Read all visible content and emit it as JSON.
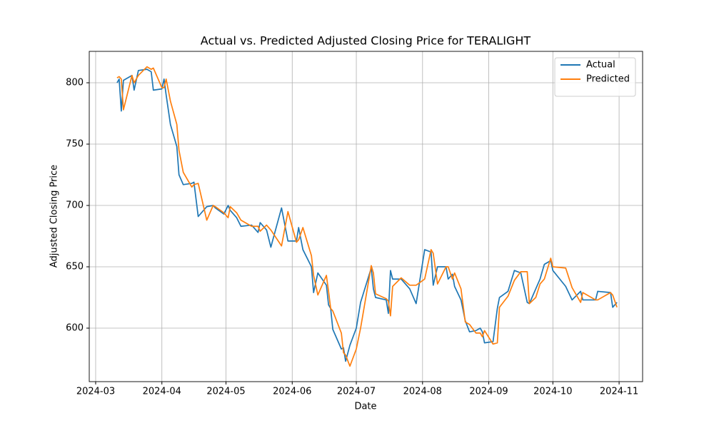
{
  "chart_data": {
    "type": "line",
    "title": "Actual vs. Predicted Adjusted Closing Price for TERALIGHT",
    "x_label": "Date",
    "y_label": "Adjusted Closing Price",
    "x": [
      "2024-03-11",
      "2024-03-12",
      "2024-03-13",
      "2024-03-14",
      "2024-03-18",
      "2024-03-19",
      "2024-03-21",
      "2024-03-25",
      "2024-03-27",
      "2024-03-28",
      "2024-04-01",
      "2024-04-02",
      "2024-04-03",
      "2024-04-05",
      "2024-04-08",
      "2024-04-09",
      "2024-04-11",
      "2024-04-15",
      "2024-04-16",
      "2024-04-18",
      "2024-04-22",
      "2024-04-25",
      "2024-04-26",
      "2024-04-30",
      "2024-05-02",
      "2024-05-03",
      "2024-05-06",
      "2024-05-08",
      "2024-05-13",
      "2024-05-16",
      "2024-05-17",
      "2024-05-20",
      "2024-05-22",
      "2024-05-27",
      "2024-05-30",
      "2024-06-03",
      "2024-06-04",
      "2024-06-06",
      "2024-06-10",
      "2024-06-11",
      "2024-06-13",
      "2024-06-17",
      "2024-06-18",
      "2024-06-19",
      "2024-06-20",
      "2024-06-24",
      "2024-06-25",
      "2024-06-26",
      "2024-06-28",
      "2024-07-01",
      "2024-07-03",
      "2024-07-08",
      "2024-07-09",
      "2024-07-10",
      "2024-07-15",
      "2024-07-16",
      "2024-07-17",
      "2024-07-18",
      "2024-07-22",
      "2024-07-26",
      "2024-07-29",
      "2024-08-02",
      "2024-08-05",
      "2024-08-06",
      "2024-08-08",
      "2024-08-12",
      "2024-08-13",
      "2024-08-15",
      "2024-08-16",
      "2024-08-19",
      "2024-08-21",
      "2024-08-23",
      "2024-08-26",
      "2024-08-28",
      "2024-08-29",
      "2024-08-30",
      "2024-09-03",
      "2024-09-05",
      "2024-09-06",
      "2024-09-10",
      "2024-09-13",
      "2024-09-16",
      "2024-09-19",
      "2024-09-20",
      "2024-09-23",
      "2024-09-25",
      "2024-09-27",
      "2024-09-30",
      "2024-10-01",
      "2024-10-07",
      "2024-10-10",
      "2024-10-14",
      "2024-10-15",
      "2024-10-21",
      "2024-10-22",
      "2024-10-28",
      "2024-10-29",
      "2024-10-31"
    ],
    "series": [
      {
        "name": "Actual",
        "color": "#1f77b4",
        "values": [
          800,
          803,
          777,
          802,
          806,
          794,
          810,
          811,
          809,
          794,
          795,
          803,
          790,
          766,
          748,
          725,
          717,
          718,
          719,
          691,
          699,
          700,
          698,
          693,
          700,
          696,
          690,
          683,
          684,
          678,
          686,
          680,
          666,
          698,
          671,
          671,
          682,
          664,
          650,
          629,
          645,
          635,
          619,
          616,
          599,
          583,
          584,
          573,
          586,
          600,
          621,
          649,
          632,
          625,
          623,
          612,
          647,
          640,
          640,
          632,
          620,
          664,
          662,
          635,
          650,
          650,
          640,
          644,
          634,
          623,
          606,
          597,
          598,
          600,
          597,
          588,
          589,
          616,
          625,
          630,
          647,
          645,
          621,
          620,
          632,
          640,
          652,
          655,
          647,
          634,
          623,
          630,
          623,
          623,
          630,
          629,
          617,
          621
        ]
      },
      {
        "name": "Predicted",
        "color": "#ff7f0e",
        "values": [
          804,
          805,
          803,
          778,
          806,
          800,
          806,
          813,
          811,
          812,
          796,
          796,
          803,
          785,
          766,
          745,
          727,
          715,
          717,
          718,
          688,
          700,
          699,
          694,
          690,
          699,
          694,
          688,
          683,
          683,
          679,
          684,
          680,
          667,
          695,
          670,
          672,
          682,
          659,
          643,
          627,
          643,
          630,
          616,
          614,
          596,
          580,
          578,
          569,
          583,
          600,
          651,
          645,
          628,
          624,
          622,
          610,
          634,
          641,
          635,
          635,
          640,
          664,
          661,
          636,
          650,
          650,
          640,
          645,
          632,
          605,
          603,
          596,
          596,
          593,
          598,
          587,
          588,
          617,
          626,
          639,
          646,
          646,
          620,
          625,
          636,
          640,
          657,
          650,
          649,
          633,
          621,
          629,
          623,
          623,
          629,
          627,
          617
        ]
      }
    ],
    "xlim": [
      "2024-02-27",
      "2024-11-12"
    ],
    "xticks": [
      "2024-03",
      "2024-04",
      "2024-05",
      "2024-06",
      "2024-07",
      "2024-08",
      "2024-09",
      "2024-10",
      "2024-11"
    ],
    "ylim": [
      556.4,
      825.6
    ],
    "yticks": [
      600,
      650,
      700,
      750,
      800
    ],
    "grid": true,
    "legend": "upper right"
  }
}
